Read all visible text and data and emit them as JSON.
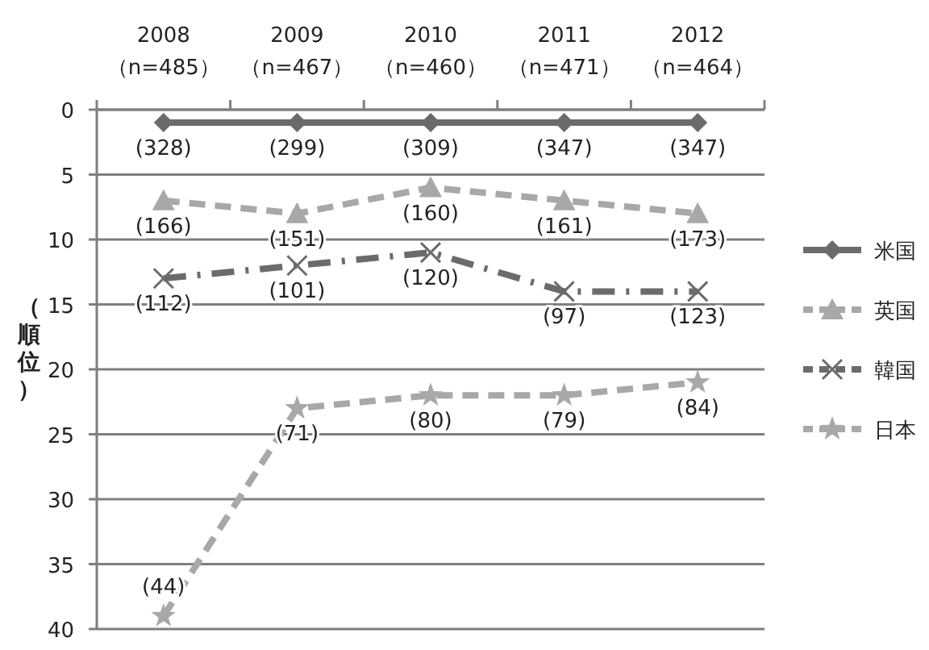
{
  "chart_data": {
    "type": "line",
    "ylabel": "（順位）",
    "categories": [
      "2008\n（n=485）",
      "2009\n（n=467）",
      "2010\n（n=460）",
      "2011\n（n=471）",
      "2012\n（n=464）"
    ],
    "ylim": [
      40,
      0
    ],
    "yticks": [
      0,
      5,
      10,
      15,
      20,
      25,
      30,
      35,
      40
    ],
    "grid": "y",
    "legend": "right",
    "series": [
      {
        "name": "米国",
        "color": "#6b6b6b",
        "values": [
          1,
          1,
          1,
          1,
          1
        ],
        "marker": "diamond",
        "line_style": "solid"
      },
      {
        "name": "英国",
        "color": "#a8a8a8",
        "values": [
          7,
          8,
          6,
          7,
          8
        ],
        "marker": "triangle",
        "line_style": "dashed"
      },
      {
        "name": "韓国",
        "color": "#6b6b6b",
        "values": [
          13,
          12,
          11,
          14,
          14
        ],
        "marker": "cross",
        "line_style": "dashdot"
      },
      {
        "name": "日本",
        "color": "#a8a8a8",
        "values": [
          39,
          23,
          22,
          22,
          21
        ],
        "marker": "star",
        "line_style": "dashed"
      }
    ],
    "annotations": [
      {
        "text": "(328)",
        "x": "2008\n（n=485）",
        "y": 1
      },
      {
        "text": "(299)",
        "x": "2009\n（n=467）",
        "y": 1
      },
      {
        "text": "(309)",
        "x": "2010\n（n=460）",
        "y": 1
      },
      {
        "text": "(347)",
        "x": "2011\n（n=471）",
        "y": 1
      },
      {
        "text": "(347)",
        "x": "2012\n（n=464）",
        "y": 1
      },
      {
        "text": "(166)",
        "x": "2008\n（n=485）",
        "y": 7
      },
      {
        "text": "(151)",
        "x": "2009\n（n=467）",
        "y": 8
      },
      {
        "text": "(160)",
        "x": "2010\n（n=460）",
        "y": 6
      },
      {
        "text": "(161)",
        "x": "2011\n（n=471）",
        "y": 7
      },
      {
        "text": "(173)",
        "x": "2012\n（n=464）",
        "y": 8
      },
      {
        "text": "(112)",
        "x": "2008\n（n=485）",
        "y": 13
      },
      {
        "text": "(101)",
        "x": "2009\n（n=467）",
        "y": 12
      },
      {
        "text": "(120)",
        "x": "2010\n（n=460）",
        "y": 11
      },
      {
        "text": "(97)",
        "x": "2011\n（n=471）",
        "y": 14
      },
      {
        "text": "(123)",
        "x": "2012\n（n=464）",
        "y": 14
      },
      {
        "text": "(44)",
        "x": "2008\n（n=485）",
        "y": 39
      },
      {
        "text": "(71)",
        "x": "2009\n（n=467）",
        "y": 23
      },
      {
        "text": "(80)",
        "x": "2010\n（n=460）",
        "y": 22
      },
      {
        "text": "(79)",
        "x": "2011\n（n=471）",
        "y": 22
      },
      {
        "text": "(84)",
        "x": "2012\n（n=464）",
        "y": 21
      }
    ]
  }
}
